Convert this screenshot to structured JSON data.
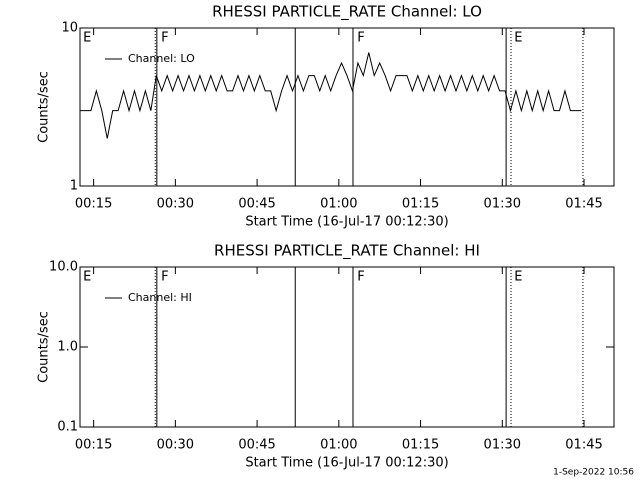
{
  "chart_data": [
    {
      "type": "line",
      "title": "RHESSI PARTICLE_RATE Channel: LO",
      "xlabel": "Start Time (16-Jul-17 00:12:30)",
      "ylabel": "Counts/sec",
      "log_y": true,
      "legend": "upper left",
      "xlim": [
        12.5,
        110.5
      ],
      "xticks": [
        {
          "value": 15,
          "label": "00:15"
        },
        {
          "value": 30,
          "label": "00:30"
        },
        {
          "value": 45,
          "label": "00:45"
        },
        {
          "value": 60,
          "label": "01:00"
        },
        {
          "value": 75,
          "label": "01:15"
        },
        {
          "value": 90,
          "label": "01:30"
        },
        {
          "value": 105,
          "label": "01:45"
        }
      ],
      "ylim": [
        1,
        10
      ],
      "yticks": [
        1,
        10
      ],
      "flags": [
        {
          "x": 26.3,
          "style": "dotted"
        },
        {
          "x": 26.6,
          "style": "solid"
        },
        {
          "x": 52.0,
          "style": "solid"
        },
        {
          "x": 62.6,
          "style": "solid"
        },
        {
          "x": 90.7,
          "style": "solid"
        },
        {
          "x": 91.6,
          "style": "dotted"
        },
        {
          "x": 104.8,
          "style": "dotted"
        }
      ],
      "flag_labels": [
        {
          "x": 12.9,
          "text": "E"
        },
        {
          "x": 27.2,
          "text": "F"
        },
        {
          "x": 63.2,
          "text": "F"
        },
        {
          "x": 92.0,
          "text": "E"
        }
      ],
      "x": [
        12.5,
        13.5,
        14.5,
        15.5,
        16.5,
        17.5,
        18.5,
        19.5,
        20.5,
        21.5,
        22.5,
        23.5,
        24.5,
        25.5,
        26.5,
        27.5,
        28.5,
        29.5,
        30.5,
        31.5,
        32.5,
        33.5,
        34.5,
        35.5,
        36.5,
        37.5,
        38.5,
        39.5,
        40.5,
        41.5,
        42.5,
        43.5,
        44.5,
        45.5,
        46.5,
        47.5,
        48.5,
        49.5,
        50.5,
        51.5,
        52.5,
        53.5,
        54.5,
        55.5,
        56.5,
        57.5,
        58.5,
        59.5,
        60.5,
        61.5,
        62.5,
        63.5,
        64.5,
        65.5,
        66.5,
        67.5,
        68.5,
        69.5,
        70.5,
        71.5,
        72.5,
        73.5,
        74.5,
        75.5,
        76.5,
        77.5,
        78.5,
        79.5,
        80.5,
        81.5,
        82.5,
        83.5,
        84.5,
        85.5,
        86.5,
        87.5,
        88.5,
        89.5,
        90.5,
        91.5,
        92.5,
        93.5,
        94.5,
        95.5,
        96.5,
        97.5,
        98.5,
        99.5,
        100.5,
        101.5,
        102.5,
        103.5,
        104.5
      ],
      "series": [
        {
          "name": "Channel: LO",
          "color": "#000000",
          "values": [
            3,
            3,
            3,
            4,
            3,
            2,
            3,
            3,
            4,
            3,
            4,
            3,
            4,
            3,
            5,
            4,
            5,
            4,
            5,
            4,
            5,
            4,
            5,
            4,
            5,
            4,
            5,
            4,
            4,
            5,
            4,
            5,
            4,
            5,
            4,
            4,
            3,
            4,
            5,
            4,
            5,
            4,
            5,
            5,
            4,
            5,
            4,
            5,
            6,
            5,
            4,
            6,
            5,
            7,
            5,
            6,
            5,
            4,
            5,
            5,
            5,
            4,
            5,
            4,
            5,
            4,
            5,
            4,
            5,
            4,
            5,
            4,
            5,
            4,
            5,
            4,
            5,
            4,
            4,
            3,
            4,
            3,
            4,
            3,
            4,
            3,
            4,
            3,
            3,
            4,
            3,
            3,
            3
          ]
        }
      ]
    },
    {
      "type": "line",
      "title": "RHESSI PARTICLE_RATE Channel: HI",
      "xlabel": "Start Time (16-Jul-17 00:12:30)",
      "ylabel": "Counts/sec",
      "log_y": true,
      "legend": "upper left",
      "xlim": [
        12.5,
        110.5
      ],
      "xticks": [
        {
          "value": 15,
          "label": "00:15"
        },
        {
          "value": 30,
          "label": "00:30"
        },
        {
          "value": 45,
          "label": "00:45"
        },
        {
          "value": 60,
          "label": "01:00"
        },
        {
          "value": 75,
          "label": "01:15"
        },
        {
          "value": 90,
          "label": "01:30"
        },
        {
          "value": 105,
          "label": "01:45"
        }
      ],
      "ylim": [
        0.1,
        10
      ],
      "yticks": [
        0.1,
        {
          "value": 1,
          "label": "1.0"
        },
        {
          "value": 10,
          "label": "10.0"
        }
      ],
      "flags": [
        {
          "x": 26.3,
          "style": "dotted"
        },
        {
          "x": 26.6,
          "style": "solid"
        },
        {
          "x": 52.0,
          "style": "solid"
        },
        {
          "x": 62.6,
          "style": "solid"
        },
        {
          "x": 90.7,
          "style": "solid"
        },
        {
          "x": 91.6,
          "style": "dotted"
        },
        {
          "x": 104.8,
          "style": "dotted"
        }
      ],
      "flag_labels": [
        {
          "x": 12.9,
          "text": "E"
        },
        {
          "x": 27.2,
          "text": "F"
        },
        {
          "x": 63.2,
          "text": "F"
        },
        {
          "x": 92.0,
          "text": "E"
        }
      ],
      "x": [],
      "series": [
        {
          "name": "Channel: HI",
          "color": "#000000",
          "values": []
        }
      ]
    }
  ],
  "footer": "1-Sep-2022 10:56"
}
